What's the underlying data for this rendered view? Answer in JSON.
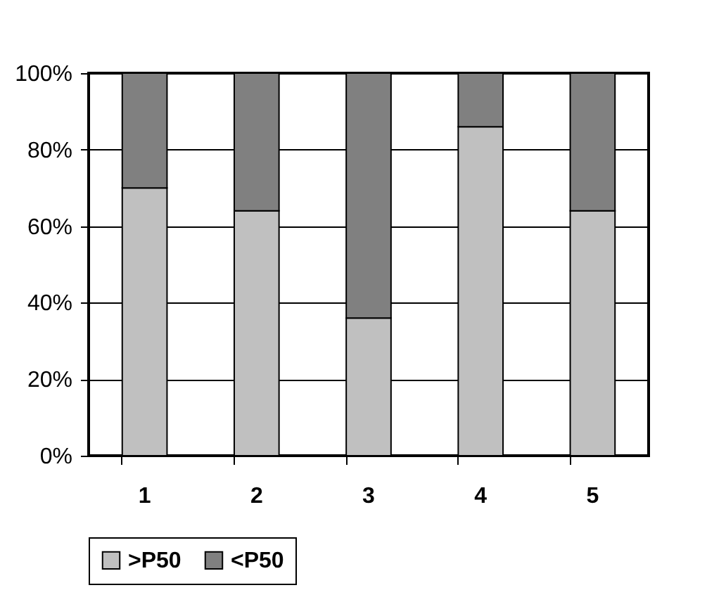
{
  "chart_data": {
    "type": "bar",
    "stacked": true,
    "categories": [
      "1",
      "2",
      "3",
      "4",
      "5"
    ],
    "series": [
      {
        "name": ">P50",
        "color": "#c0c0c0",
        "values": [
          70,
          64,
          36,
          86,
          64
        ]
      },
      {
        "name": "<P50",
        "color": "#808080",
        "values": [
          30,
          36,
          64,
          14,
          36
        ]
      }
    ],
    "ylim": [
      0,
      100
    ],
    "yticks": [
      {
        "value": 0,
        "label": "0%"
      },
      {
        "value": 20,
        "label": "20%"
      },
      {
        "value": 40,
        "label": "40%"
      },
      {
        "value": 60,
        "label": "60%"
      },
      {
        "value": 80,
        "label": "80%"
      },
      {
        "value": 100,
        "label": "100%"
      }
    ],
    "grid": "y",
    "legend": "bottom"
  }
}
